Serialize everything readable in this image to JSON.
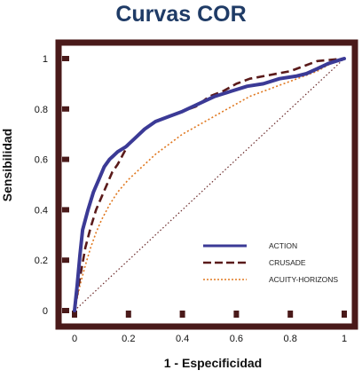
{
  "chart_data": {
    "type": "line",
    "title": "Curvas COR",
    "xlabel": "1 - Especificidad",
    "ylabel": "Sensibilidad",
    "xlim": [
      0,
      1
    ],
    "ylim": [
      0,
      1
    ],
    "xticks": [
      "0",
      "0.2",
      "0.4",
      "0.6",
      "0.8",
      "1"
    ],
    "xtick_values": [
      0,
      0.2,
      0.4,
      0.6,
      0.8,
      1
    ],
    "yticks": [
      "0",
      "0.2",
      "0.4",
      "0.6",
      "0.8",
      "1"
    ],
    "ytick_values": [
      0,
      0.2,
      0.4,
      0.6,
      0.8,
      1
    ],
    "legend_position": "lower-right",
    "grid": false,
    "frame_color": "#4a1a1a",
    "series": [
      {
        "name": "ACTION",
        "color": "#3b3a96",
        "style": "solid",
        "x": [
          0,
          0.01,
          0.02,
          0.03,
          0.05,
          0.07,
          0.09,
          0.11,
          0.13,
          0.16,
          0.19,
          0.22,
          0.26,
          0.3,
          0.35,
          0.4,
          0.46,
          0.52,
          0.58,
          0.64,
          0.7,
          0.76,
          0.82,
          0.86,
          0.9,
          0.94,
          0.97,
          1.0
        ],
        "y": [
          0,
          0.1,
          0.22,
          0.32,
          0.4,
          0.47,
          0.52,
          0.57,
          0.6,
          0.63,
          0.65,
          0.68,
          0.72,
          0.75,
          0.77,
          0.79,
          0.82,
          0.85,
          0.87,
          0.89,
          0.9,
          0.92,
          0.93,
          0.94,
          0.96,
          0.98,
          0.99,
          1.0
        ]
      },
      {
        "name": "CRUSADE",
        "color": "#5a1a1a",
        "style": "dash",
        "x": [
          0,
          0.02,
          0.04,
          0.06,
          0.08,
          0.1,
          0.12,
          0.14,
          0.16,
          0.18,
          0.2,
          0.23,
          0.26,
          0.3,
          0.35,
          0.4,
          0.45,
          0.5,
          0.55,
          0.6,
          0.65,
          0.7,
          0.75,
          0.8,
          0.85,
          0.9,
          0.95,
          1.0
        ],
        "y": [
          0,
          0.13,
          0.25,
          0.33,
          0.4,
          0.45,
          0.5,
          0.55,
          0.58,
          0.62,
          0.66,
          0.69,
          0.72,
          0.75,
          0.77,
          0.79,
          0.81,
          0.85,
          0.87,
          0.9,
          0.92,
          0.93,
          0.94,
          0.95,
          0.97,
          0.99,
          0.995,
          1.0
        ]
      },
      {
        "name": "ACUITY-HORIZONS",
        "color": "#e07820",
        "style": "dot",
        "x": [
          0,
          0.02,
          0.04,
          0.06,
          0.08,
          0.1,
          0.13,
          0.16,
          0.2,
          0.25,
          0.3,
          0.35,
          0.4,
          0.45,
          0.5,
          0.55,
          0.6,
          0.65,
          0.7,
          0.75,
          0.8,
          0.85,
          0.9,
          0.95,
          1.0
        ],
        "y": [
          0,
          0.1,
          0.18,
          0.25,
          0.31,
          0.36,
          0.42,
          0.47,
          0.52,
          0.57,
          0.62,
          0.66,
          0.7,
          0.73,
          0.76,
          0.79,
          0.82,
          0.85,
          0.87,
          0.89,
          0.91,
          0.93,
          0.95,
          0.98,
          1.0
        ]
      },
      {
        "name": "",
        "color": "#6a2a2a",
        "style": "reference-diagonal",
        "x": [
          0,
          1
        ],
        "y": [
          0,
          1
        ]
      }
    ]
  }
}
